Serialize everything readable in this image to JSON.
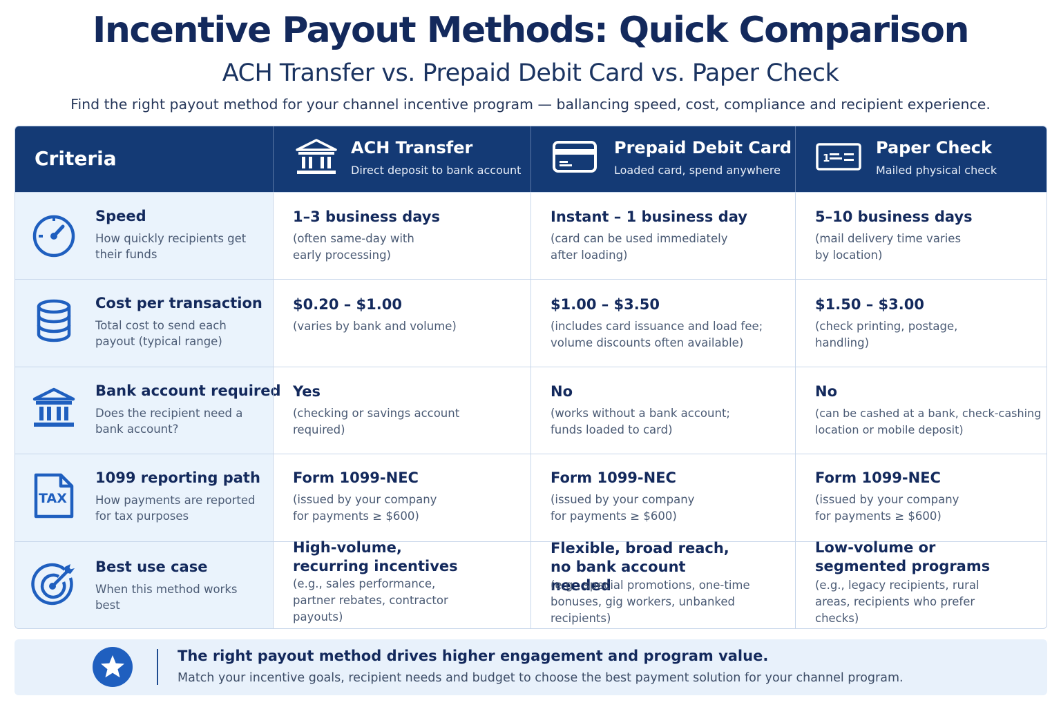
{
  "header": {
    "title": "Incentive Payout Methods: Quick Comparison",
    "subtitle": "ACH Transfer vs. Prepaid Debit Card vs. Paper Check",
    "tagline": "Find the right payout method for your channel incentive program — ballancing speed, cost, compliance and recipient experience."
  },
  "colors": {
    "navy": "#143a75",
    "accent": "#1f5fbf",
    "light_blue": "#eaf3fc",
    "title": "#13295c"
  },
  "table": {
    "criteria_label": "Criteria",
    "methods": [
      {
        "name": "ACH Transfer",
        "desc": "Direct deposit to bank account",
        "icon": "bank-icon"
      },
      {
        "name": "Prepaid Debit Card",
        "desc": "Loaded card, spend anywhere",
        "icon": "credit-card-icon"
      },
      {
        "name": "Paper Check",
        "desc": "Mailed physical check",
        "icon": "check-icon"
      }
    ],
    "rows": [
      {
        "title": "Speed",
        "desc": "How quickly recipients get their funds",
        "icon": "speedometer-icon",
        "values": [
          {
            "main": "1–3 business days",
            "sub": "(often same-day with early processing)"
          },
          {
            "main": "Instant – 1 business day",
            "sub": "(card can be used immediately after loading)"
          },
          {
            "main": "5–10 business days",
            "sub": "(mail delivery time varies by location)"
          }
        ]
      },
      {
        "title": "Cost per transaction",
        "desc": "Total cost to send each payout (typical range)",
        "icon": "coin-stack-icon",
        "values": [
          {
            "main": "$0.20 – $1.00",
            "sub": "(varies by bank and volume)"
          },
          {
            "main": "$1.00 – $3.50",
            "sub": "(includes card issuance and load fee; volume discounts often available)"
          },
          {
            "main": "$1.50 – $3.00",
            "sub": "(check printing, postage, handling)"
          }
        ]
      },
      {
        "title": "Bank account required",
        "desc": "Does the recipient need a bank account?",
        "icon": "bank-icon",
        "values": [
          {
            "main": "Yes",
            "sub": "(checking or savings account required)"
          },
          {
            "main": "No",
            "sub": "(works without a bank account; funds loaded to card)"
          },
          {
            "main": "No",
            "sub": "(can be cashed at a bank, check-cashing location or mobile deposit)"
          }
        ]
      },
      {
        "title": "1099 reporting path",
        "desc": "How payments are reported for tax purposes",
        "icon": "tax-document-icon",
        "values": [
          {
            "main": "Form 1099-NEC",
            "sub": "(issued by your company for payments ≥ $600)"
          },
          {
            "main": "Form 1099-NEC",
            "sub": "(issued by your company for payments ≥ $600)"
          },
          {
            "main": "Form 1099-NEC",
            "sub": "(issued by your company for payments ≥ $600)"
          }
        ]
      },
      {
        "title": "Best use case",
        "desc": "When this method works best",
        "icon": "target-icon",
        "values": [
          {
            "main": "High-volume, recurring incentives",
            "sub": "(e.g., sales performance, partner rebates, contractor payouts)"
          },
          {
            "main": "Flexible, broad reach, no bank account needed",
            "sub": "(e.g., special promotions, one-time bonuses, gig workers, unbanked recipients)"
          },
          {
            "main": "Low-volume or segmented programs",
            "sub": "(e.g., legacy recipients, rural areas, recipients who prefer checks)"
          }
        ]
      }
    ]
  },
  "footer": {
    "icon": "star-icon",
    "title": "The right payout method drives higher engagement and program value.",
    "text": "Match your incentive goals, recipient needs and budget to choose the best payment solution for your channel program."
  }
}
